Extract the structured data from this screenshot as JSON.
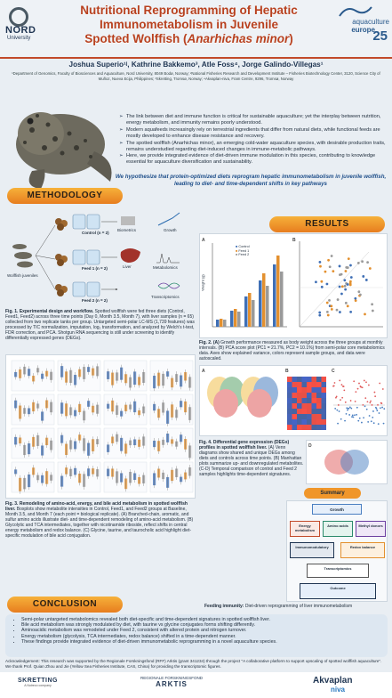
{
  "header": {
    "title_line1": "Nutritional Reprogramming of Hepatic",
    "title_line2": "Immunometabolism in Juvenile",
    "title_line3_a": "Spotted Wolffish (",
    "title_line3_b": "Anarhichas minor",
    "title_line3_c": ")",
    "nord_logo": "NORD",
    "nord_logo_sub": "University",
    "ae_logo_1": "aquaculture",
    "ae_logo_2": "europe",
    "ae_logo_year": "25"
  },
  "authors": "Joshua Superio¹ʲ, Kathrine Bakkemo³, Atle Foss⁴, Jorge Galindo-Villegas¹",
  "affiliations": "¹Department of Genomics, Faculty of Biosciences and Aquaculture, Nord University, 8049 Bodø, Norway; ²National Fisheries Research and Development Institute – Fisheries Biotechnology Center, 3120, Science City of Muñoz, Nueva Ecija, Philippines; ³Skretting, Tromsø, Norway; ⁴Akvaplan-niva, Fram Centre, 9296, Tromsø, Norway",
  "intro": [
    "The link between diet and immune function is critical for sustainable aquaculture; yet the interplay between nutrition, energy metabolism, and immunity remains poorly understood.",
    "Modern aquafeeds increasingly rely on terrestrial ingredients that differ from natural diets, while functional feeds are mostly developed to enhance disease resistance and recovery.",
    "The spotted wolffish (Anarhichas minor), an emerging cold-water aquaculture species, with desirable production traits, remains understudied regarding diet-induced changes in immune-metabolic pathways.",
    "Here, we provide integrated evidence of diet-driven immune modulation in this species, contributing to knowledge essential for aquaculture diversification and sustainability."
  ],
  "hypothesis": "We hypothesize that protein-optimized diets reprogram hepatic immunometabolism in juvenile wolffish, leading to diet- and time-dependent shifts in key pathways",
  "methodology": {
    "banner": "METHODOLOGY",
    "control": "Control",
    "control_n": "(n = 2)",
    "feed1": "Feed 1",
    "feed1_n": "(n = 2)",
    "feed2": "Feed 2",
    "feed2_n": "(n = 2)",
    "juveniles": "Wolffish juveniles",
    "biometrics": "Biometrics",
    "growth": "Growth",
    "liver": "Liver",
    "metabolomics": "Metabolomics",
    "transcriptomics": "Transcriptomics",
    "fig1_title": "Fig. 1. Experimental design and workflow.",
    "fig1_text": "Spotted wolffish were fed three diets (Control, Feed1, Feed2) across three time points (Day 0, Month 3.5, Month 7), with liver samples (n = 65) collected from two replicate tanks per group. Untargeted semi-polar LC-MS (1,739 features) was processed by TIC normalization, imputation, log₂ transformation, and analyzed by Welch's t-test, FDR correction, and PCA. Shotgun RNA sequencing is still under screening to identify differentially expressed genes (DEGs)."
  },
  "results": {
    "banner": "RESULTS",
    "fig2_title": "Fig. 2. (A)",
    "fig2_text": "Growth performance measured as body weight across the three groups at monthly intervals. (B) PCA score plot (PC1 = 21.7%, PC2 = 10.1%) from semi-polar core metabolomics data. Axes show explained variance, colors represent sample groups, and data were autoscaled.",
    "fig3_title": "Fig. 3. Remodeling of amino-acid, energy, and bile acid metabolism in spotted wolffish liver.",
    "fig3_text": "Boxplots show metabolite intensities in Control, Feed1, and Feed2 groups at Baseline, Month 3.5, and Month 7 (each point = biological replicate). (A) Branched-chain, aromatic, and sulfur amino acids illustrate diet- and time-dependent remodeling of amino-acid metabolism. (B) Glycolytic and TCA intermediates, together with nicotinamide riboside, reflect shifts in central energy metabolism and redox balance. (C) Glycine, taurine, and taurocholic acid highlight diet-specific modulation of bile acid conjugation.",
    "fig4_title": "Fig. 4. Differential gene expression (DEGs) profiles in spotted wolffish liver.",
    "fig4_text": "(A) Venn diagrams show shared and unique DEGs among diets and controls across time points. (B) Manhattan plots summarize up- and downregulated metabolites. (C-D) Temporal comparison of control and Feed 2 samples highlights time-dependent signatures.",
    "legend_control": "Control",
    "legend_feed1": "Feed 1",
    "legend_feed2": "Feed 2",
    "weight_axis": "Weight (g)",
    "summary_title": "Summary",
    "feeding_immunity_label": "Feeding immunity:",
    "feeding_immunity": "Diet-driven reprogramming of liver immunometabolism",
    "summary_boxes": {
      "growth": "Growth",
      "energy": "Energy metabolism",
      "amino": "Amino acids",
      "methyl": "Methyl donors",
      "immuno": "Immunomodulatory",
      "redox": "Redox balance",
      "transcript": "Transcriptomics",
      "outcome": "Outcome"
    }
  },
  "conclusion": {
    "banner": "CONCLUSION",
    "items": [
      "Semi-polar untargeted metabolomics revealed both diet-specific and time-dependent signatures in spotted wolffish liver.",
      "Bile acid metabolism was strongly modulated by diet, with taurine vs glycine conjugates forms shifting differently.",
      "Aminoacidic metabolism was remodeled under Feed 2, consistent with altered protein and nitrogen turnover.",
      "Energy metabolism (glycolysis, TCA intermediates, redox balance) shifted in a time-dependent manner.",
      "These findings provide integrated evidence of diet-driven immunometabolic reprogramming in a novel aquaculture species."
    ]
  },
  "acknowledgement": "Acknowledgement: This research was supported by the Regionale Forskningsfond (RFF) Arktis (grant 341234) through the project \"A collaborative platform to support upscaling of spotted wolffish aquaculture\". We thank Prof. Quian Zhou and Jie (Yellow Sea Fisheries Institute, CAS, China) for providing the transcriptomic figures.",
  "footer": {
    "skretting": "SKRETTING",
    "skretting_sub": "A Nutreco company",
    "rff_1": "REGIONALE FORSKNINGSFOND",
    "rff_2": "ARKTIS",
    "akvaplan": "Akvaplan",
    "akvaplan_2": "niva"
  },
  "colors": {
    "title": "#b8411f",
    "banner": "#f0962a",
    "control": "#3f6fb5",
    "feed1": "#e3902f",
    "feed2": "#9a9a9a",
    "navy": "#1f3552"
  }
}
